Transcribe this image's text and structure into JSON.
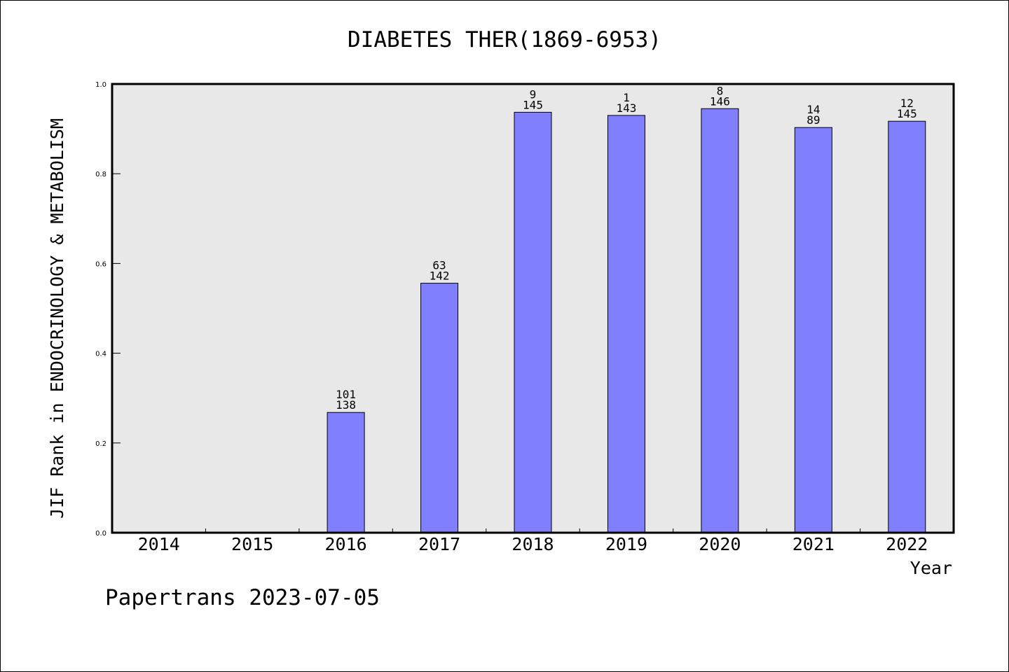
{
  "chart_data": {
    "type": "bar",
    "title": "DIABETES THER(1869-6953)",
    "xlabel": "Year",
    "ylabel": "JIF Rank in ENDOCRINOLOGY & METABOLISM",
    "categories": [
      "2014",
      "2015",
      "2016",
      "2017",
      "2018",
      "2019",
      "2020",
      "2021",
      "2022"
    ],
    "values": [
      null,
      null,
      0.268,
      0.556,
      0.937,
      0.93,
      0.945,
      0.903,
      0.917
    ],
    "rank": [
      null,
      null,
      "101",
      "63",
      "9",
      "1",
      "8",
      "14",
      "12"
    ],
    "total": [
      null,
      null,
      "138",
      "142",
      "145",
      "143",
      "146",
      "89",
      "145"
    ],
    "ylim": [
      0,
      1.0
    ],
    "yticks": [
      "0.0",
      "0.2",
      "0.4",
      "0.6",
      "0.8",
      "1.0"
    ],
    "grid": false,
    "legend": "none",
    "colors": {
      "bar": "#8080ff",
      "plot_bg": "#e8e8e8",
      "frame": "#000000"
    }
  },
  "footer": "Papertrans 2023-07-05"
}
